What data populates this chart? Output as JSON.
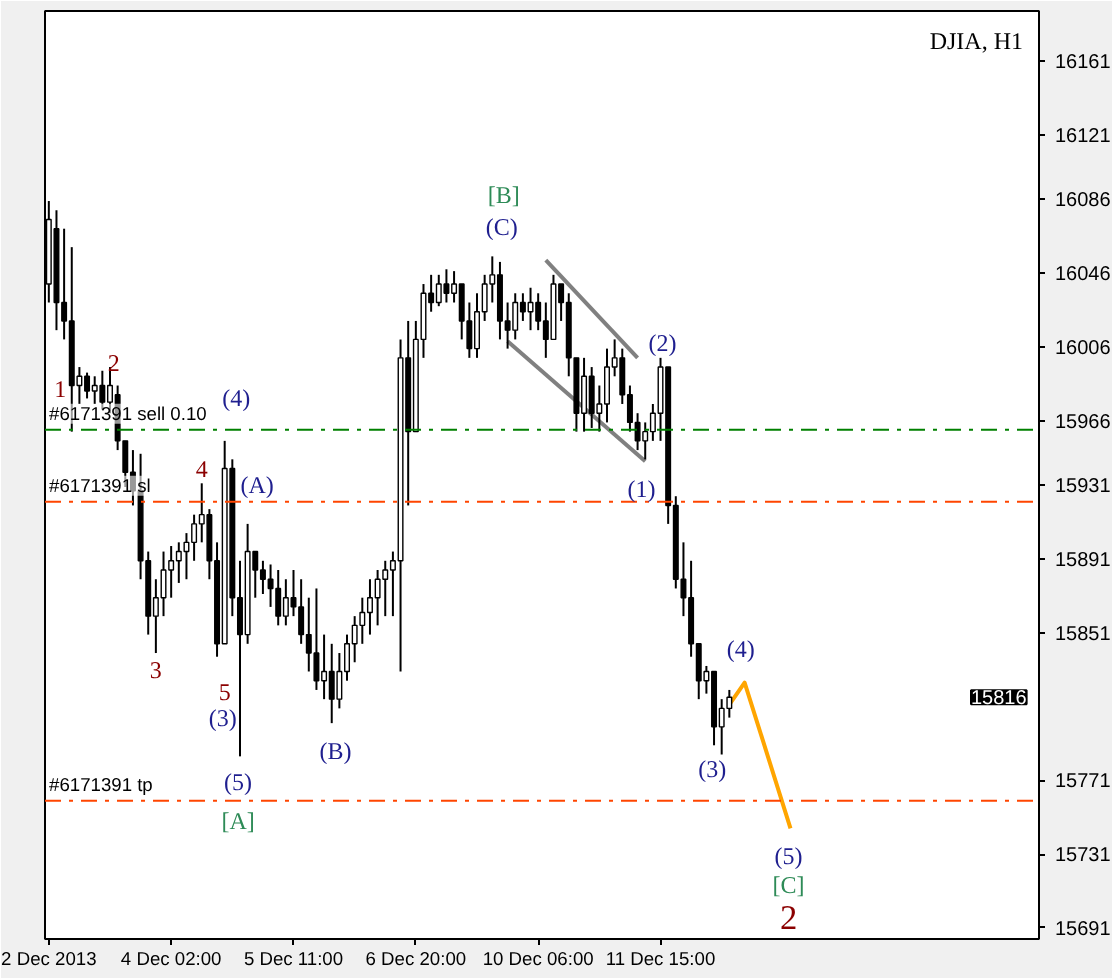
{
  "chart_data": {
    "type": "candlestick",
    "title": "DJIA, H1",
    "categories": [
      "2 Dec 2013",
      null,
      null,
      null,
      null,
      null,
      null,
      null,
      null,
      null,
      null,
      null,
      null,
      null,
      null,
      null,
      "4 Dec 02:00",
      null,
      null,
      null,
      null,
      null,
      null,
      null,
      null,
      null,
      null,
      null,
      null,
      null,
      null,
      null,
      "5 Dec 11:00",
      null,
      null,
      null,
      null,
      null,
      null,
      null,
      null,
      null,
      null,
      null,
      null,
      null,
      null,
      null,
      "6 Dec 20:00",
      null,
      null,
      null,
      null,
      null,
      null,
      null,
      null,
      null,
      null,
      null,
      null,
      null,
      null,
      null,
      "10 Dec 06:00",
      null,
      null,
      null,
      null,
      null,
      null,
      null,
      null,
      null,
      null,
      null,
      null,
      null,
      null,
      null,
      "11 Dec 15:00",
      null,
      null,
      null,
      null,
      null,
      null,
      null,
      null,
      null,
      null,
      null,
      null,
      null,
      null,
      null,
      null,
      null,
      null,
      null,
      null,
      null,
      null,
      null,
      null,
      null,
      null,
      null,
      null,
      null,
      null,
      null,
      null,
      null,
      null,
      null,
      null,
      null,
      null,
      null,
      null,
      null,
      null,
      null,
      null,
      null,
      null,
      null,
      null,
      null
    ],
    "ohlc": [
      [
        16040,
        16085,
        16030,
        16075
      ],
      [
        16070,
        16080,
        16015,
        16030
      ],
      [
        16030,
        16070,
        16010,
        16020
      ],
      [
        16020,
        16060,
        15960,
        15985
      ],
      [
        15985,
        15995,
        15975,
        15990
      ],
      [
        15990,
        15992,
        15978,
        15982
      ],
      [
        15982,
        15990,
        15975,
        15985
      ],
      [
        15985,
        15993,
        15972,
        15976
      ],
      [
        15976,
        15995,
        15970,
        15985
      ],
      [
        15980,
        15985,
        15950,
        15955
      ],
      [
        15955,
        15955,
        15930,
        15938
      ],
      [
        15938,
        15950,
        15920,
        15928
      ],
      [
        15928,
        15948,
        15880,
        15890
      ],
      [
        15890,
        15895,
        15850,
        15860
      ],
      [
        15860,
        15880,
        15840,
        15870
      ],
      [
        15870,
        15895,
        15860,
        15885
      ],
      [
        15885,
        15898,
        15870,
        15890
      ],
      [
        15890,
        15900,
        15878,
        15895
      ],
      [
        15895,
        15905,
        15880,
        15900
      ],
      [
        15900,
        15915,
        15890,
        15910
      ],
      [
        15910,
        15932,
        15900,
        15915
      ],
      [
        15915,
        15918,
        15880,
        15890
      ],
      [
        15890,
        15900,
        15838,
        15845
      ],
      [
        15845,
        15955,
        15845,
        15940
      ],
      [
        15940,
        15945,
        15860,
        15870
      ],
      [
        15870,
        15890,
        15784,
        15850
      ],
      [
        15850,
        15910,
        15845,
        15895
      ],
      [
        15895,
        15895,
        15870,
        15885
      ],
      [
        15885,
        15890,
        15872,
        15880
      ],
      [
        15880,
        15888,
        15865,
        15875
      ],
      [
        15875,
        15885,
        15855,
        15860
      ],
      [
        15860,
        15880,
        15855,
        15870
      ],
      [
        15870,
        15885,
        15860,
        15865
      ],
      [
        15865,
        15880,
        15845,
        15850
      ],
      [
        15850,
        15870,
        15830,
        15840
      ],
      [
        15840,
        15875,
        15820,
        15825
      ],
      [
        15825,
        15850,
        15815,
        15830
      ],
      [
        15830,
        15845,
        15802,
        15815
      ],
      [
        15815,
        15840,
        15810,
        15830
      ],
      [
        15830,
        15850,
        15825,
        15845
      ],
      [
        15845,
        15860,
        15835,
        15855
      ],
      [
        15855,
        15870,
        15845,
        15862
      ],
      [
        15862,
        15880,
        15850,
        15870
      ],
      [
        15870,
        15885,
        15855,
        15880
      ],
      [
        15880,
        15890,
        15860,
        15885
      ],
      [
        15885,
        15895,
        15860,
        15890
      ],
      [
        15890,
        16010,
        15830,
        16000
      ],
      [
        16000,
        16020,
        15920,
        15960
      ],
      [
        15960,
        16020,
        15960,
        16010
      ],
      [
        16010,
        16040,
        16000,
        16035
      ],
      [
        16035,
        16045,
        16025,
        16030
      ],
      [
        16030,
        16045,
        16028,
        16040
      ],
      [
        16040,
        16048,
        16030,
        16035
      ],
      [
        16035,
        16047,
        16030,
        16040
      ],
      [
        16040,
        16040,
        16010,
        16020
      ],
      [
        16020,
        16030,
        16000,
        16005
      ],
      [
        16005,
        16035,
        16000,
        16025
      ],
      [
        16025,
        16045,
        16020,
        16040
      ],
      [
        16040,
        16055,
        16030,
        16045
      ],
      [
        16045,
        16052,
        16010,
        16020
      ],
      [
        16020,
        16030,
        16005,
        16015
      ],
      [
        16015,
        16035,
        16010,
        16030
      ],
      [
        16030,
        16035,
        16020,
        16025
      ],
      [
        16025,
        16038,
        16015,
        16030
      ],
      [
        16030,
        16035,
        16015,
        16020
      ],
      [
        16020,
        16030,
        16000,
        16010
      ],
      [
        16010,
        16045,
        16010,
        16040
      ],
      [
        16040,
        16040,
        16020,
        16030
      ],
      [
        16030,
        16035,
        15990,
        16000
      ],
      [
        16000,
        16000,
        15960,
        15970
      ],
      [
        15970,
        16000,
        15960,
        15990
      ],
      [
        15990,
        15995,
        15962,
        15970
      ],
      [
        15970,
        15985,
        15960,
        15975
      ],
      [
        15975,
        16005,
        15965,
        15995
      ],
      [
        15995,
        16010,
        15990,
        16000
      ],
      [
        16000,
        16005,
        15975,
        15980
      ],
      [
        15980,
        15985,
        15960,
        15965
      ],
      [
        15965,
        15970,
        15950,
        15955
      ],
      [
        15955,
        15965,
        15945,
        15960
      ],
      [
        15960,
        15975,
        15955,
        15970
      ],
      [
        15970,
        16000,
        15955,
        15995
      ],
      [
        15995,
        15995,
        15910,
        15920
      ],
      [
        15920,
        15925,
        15875,
        15880
      ],
      [
        15880,
        15900,
        15860,
        15870
      ],
      [
        15870,
        15890,
        15838,
        15845
      ],
      [
        15845,
        15845,
        15815,
        15825
      ],
      [
        15825,
        15833,
        15818,
        15830
      ],
      [
        15830,
        15830,
        15790,
        15800
      ],
      [
        15800,
        15815,
        15785,
        15810
      ],
      [
        15810,
        15820,
        15805,
        15816
      ],
      null,
      null,
      null,
      null,
      null,
      null,
      null,
      null,
      null,
      null,
      null,
      null,
      null,
      null,
      null,
      null,
      null,
      null,
      null,
      null,
      null,
      null,
      null,
      null,
      null,
      null,
      null,
      null,
      null,
      null,
      null,
      null,
      null,
      null,
      null,
      null,
      null,
      null,
      null,
      null
    ],
    "series": [
      {
        "type": "line",
        "color": "#ffa500",
        "values": [
          null,
          null,
          null,
          null,
          null,
          null,
          null,
          null,
          null,
          null,
          null,
          null,
          null,
          null,
          null,
          null,
          null,
          null,
          null,
          null,
          null,
          null,
          null,
          null,
          null,
          null,
          null,
          null,
          null,
          null,
          null,
          null,
          null,
          null,
          null,
          null,
          null,
          null,
          null,
          null,
          null,
          null,
          null,
          null,
          null,
          null,
          null,
          null,
          null,
          null,
          null,
          null,
          null,
          null,
          null,
          null,
          null,
          null,
          null,
          null,
          null,
          null,
          null,
          null,
          null,
          null,
          null,
          null,
          null,
          null,
          null,
          null,
          null,
          null,
          null,
          null,
          null,
          null,
          null,
          null,
          null,
          null,
          null,
          null,
          null,
          null,
          null,
          null,
          null,
          15812,
          null,
          15824,
          null,
          null,
          null,
          null,
          null,
          15745,
          null,
          null,
          null,
          null,
          null,
          null,
          null,
          null,
          null,
          null,
          null,
          null,
          null,
          null,
          null,
          null,
          null,
          null,
          null,
          null,
          null,
          null,
          null,
          null,
          null,
          null,
          null,
          null,
          null,
          null,
          null,
          null
        ]
      },
      {
        "type": "line",
        "color": "#808080",
        "values": [
          null,
          null,
          null,
          null,
          null,
          null,
          null,
          null,
          null,
          null,
          null,
          null,
          null,
          null,
          null,
          null,
          null,
          null,
          null,
          null,
          null,
          null,
          null,
          null,
          null,
          null,
          null,
          null,
          null,
          null,
          null,
          null,
          null,
          null,
          null,
          null,
          null,
          null,
          null,
          null,
          null,
          null,
          null,
          null,
          null,
          null,
          null,
          null,
          null,
          null,
          null,
          null,
          null,
          null,
          null,
          null,
          null,
          null,
          null,
          null,
          null,
          null,
          null,
          null,
          null,
          16053,
          null,
          null,
          null,
          null,
          null,
          null,
          null,
          null,
          null,
          null,
          null,
          16000,
          null,
          null,
          null,
          null,
          null,
          null,
          null,
          null,
          null,
          null,
          null,
          null,
          null,
          null,
          null,
          null,
          null,
          null,
          null,
          null,
          null,
          null,
          null,
          null,
          null,
          null,
          null,
          null,
          null,
          null,
          null,
          null,
          null,
          null,
          null,
          null,
          null,
          null,
          null,
          null,
          null,
          null,
          null,
          null,
          null,
          null,
          null,
          null,
          null,
          null,
          null,
          null
        ]
      },
      {
        "type": "line",
        "color": "#808080",
        "values": [
          null,
          null,
          null,
          null,
          null,
          null,
          null,
          null,
          null,
          null,
          null,
          null,
          null,
          null,
          null,
          null,
          null,
          null,
          null,
          null,
          null,
          null,
          null,
          null,
          null,
          null,
          null,
          null,
          null,
          null,
          null,
          null,
          null,
          null,
          null,
          null,
          null,
          null,
          null,
          null,
          null,
          null,
          null,
          null,
          null,
          null,
          null,
          null,
          null,
          null,
          null,
          null,
          null,
          null,
          null,
          null,
          null,
          null,
          null,
          null,
          16009,
          null,
          null,
          null,
          null,
          null,
          null,
          null,
          null,
          null,
          null,
          null,
          null,
          null,
          null,
          null,
          null,
          null,
          15944,
          null,
          null,
          null,
          null,
          null,
          null,
          null,
          null,
          null,
          null,
          null,
          null,
          null,
          null,
          null,
          null,
          null,
          null,
          null,
          null,
          null,
          null,
          null,
          null,
          null,
          null,
          null,
          null,
          null,
          null,
          null,
          null,
          null,
          null,
          null,
          null,
          null,
          null,
          null,
          null,
          null,
          null,
          null,
          null,
          null,
          null,
          null,
          null,
          null,
          null,
          null
        ]
      }
    ],
    "ylim": [
      15685,
      16188
    ],
    "yticks": [
      15691,
      15731,
      15771,
      15851,
      15891,
      15931,
      15966,
      16006,
      16046,
      16086,
      16121,
      16161
    ],
    "ref_lines": [
      {
        "axis": "y",
        "value": 15961,
        "label": "#6171391 sell 0.10",
        "color": "#008000",
        "line_style": "dashed"
      },
      {
        "axis": "y",
        "value": 15922,
        "label": "#6171391 sl",
        "color": "#ff4500",
        "line_style": "dashed"
      },
      {
        "axis": "y",
        "value": 15760,
        "label": "#6171391 tp",
        "color": "#ff4500",
        "line_style": "dashed"
      }
    ],
    "annotations": [
      "1",
      "2",
      "3",
      "4",
      "5",
      "(4)",
      "(A)",
      "(3)",
      "(5)",
      "[A]",
      "(B)",
      "[B]",
      "(C)",
      "(2)",
      "(1)",
      "(4)",
      "(3)",
      "(5)",
      "[C]",
      "2",
      "15816"
    ],
    "grid": false
  }
}
